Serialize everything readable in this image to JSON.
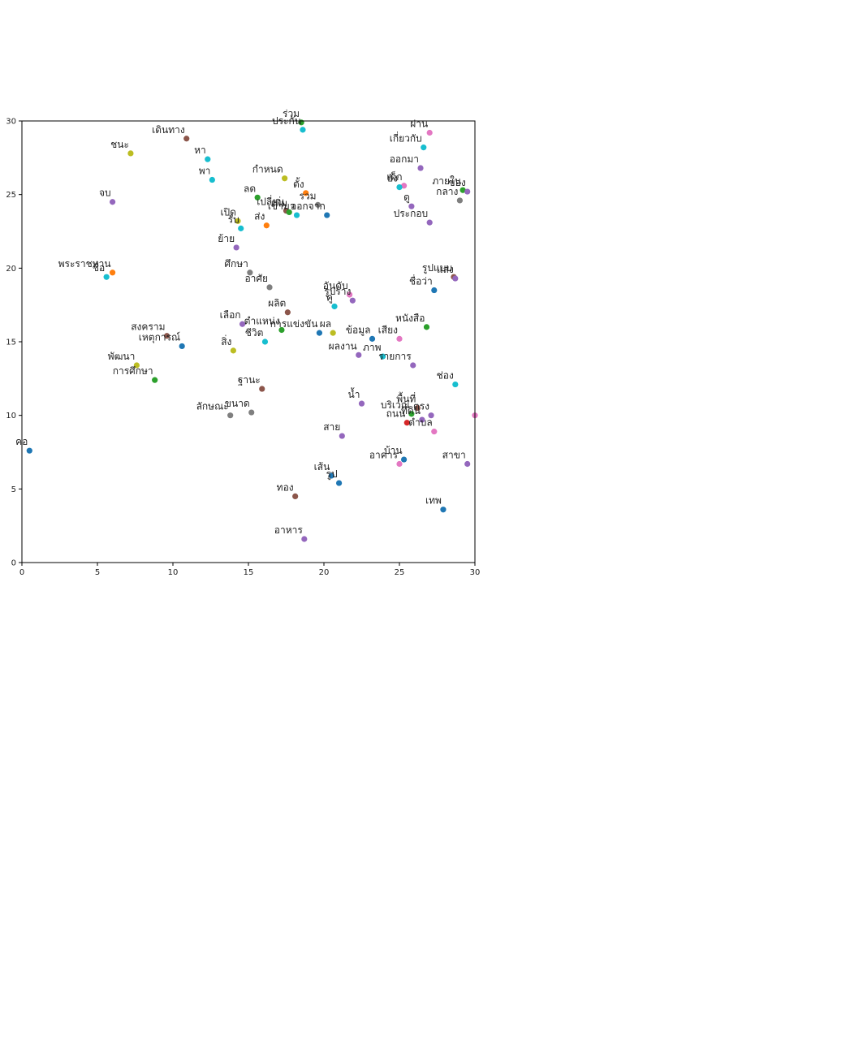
{
  "chart_data": {
    "type": "scatter",
    "title": "",
    "xlabel": "",
    "ylabel": "",
    "xlim": [
      0,
      30
    ],
    "ylim": [
      0,
      30
    ],
    "grid": false,
    "xticks": [
      0,
      5,
      10,
      15,
      20,
      25,
      30
    ],
    "yticks": [
      0,
      5,
      10,
      15,
      20,
      25,
      30
    ],
    "palette": [
      "#1f77b4",
      "#ff7f0e",
      "#2ca02c",
      "#d62728",
      "#9467bd",
      "#8c564b",
      "#e377c2",
      "#7f7f7f",
      "#bcbd22",
      "#17becf"
    ],
    "points": [
      {
        "label": "ร่วม",
        "x": 18.5,
        "y": 29.9,
        "color": "#2ca02c"
      },
      {
        "label": "ประกัน",
        "x": 18.6,
        "y": 29.4,
        "color": "#17becf"
      },
      {
        "label": "ผ่าน",
        "x": 27.0,
        "y": 29.2,
        "color": "#e377c2"
      },
      {
        "label": "เดินทาง",
        "x": 10.9,
        "y": 28.8,
        "color": "#8c564b"
      },
      {
        "label": "เกี่ยวกับ",
        "x": 26.6,
        "y": 28.2,
        "color": "#17becf"
      },
      {
        "label": "ชนะ",
        "x": 7.2,
        "y": 27.8,
        "color": "#bcbd22"
      },
      {
        "label": "หา",
        "x": 12.3,
        "y": 27.4,
        "color": "#17becf"
      },
      {
        "label": "ออกมา",
        "x": 26.4,
        "y": 26.8,
        "color": "#9467bd"
      },
      {
        "label": "กำหนด",
        "x": 17.4,
        "y": 26.1,
        "color": "#bcbd22"
      },
      {
        "label": "พา",
        "x": 12.6,
        "y": 26.0,
        "color": "#17becf"
      },
      {
        "label": "เด็ก",
        "x": 25.3,
        "y": 25.6,
        "color": "#e377c2"
      },
      {
        "label": "ยัง",
        "x": 25.0,
        "y": 25.5,
        "color": "#17becf"
      },
      {
        "label": "ภายใน",
        "x": 29.2,
        "y": 25.3,
        "color": "#2ca02c"
      },
      {
        "label": "ของ",
        "x": 29.5,
        "y": 25.2,
        "color": "#9467bd"
      },
      {
        "label": "ตั้ง",
        "x": 18.8,
        "y": 25.1,
        "color": "#ff7f0e"
      },
      {
        "label": "ลด",
        "x": 15.6,
        "y": 24.8,
        "color": "#2ca02c"
      },
      {
        "label": "กลาง",
        "x": 29.0,
        "y": 24.6,
        "color": "#7f7f7f"
      },
      {
        "label": "จบ",
        "x": 6.0,
        "y": 24.5,
        "color": "#9467bd"
      },
      {
        "label": "รวม",
        "x": 19.6,
        "y": 24.3,
        "color": "#7f7f7f"
      },
      {
        "label": "ดู",
        "x": 25.8,
        "y": 24.2,
        "color": "#9467bd"
      },
      {
        "label": "เปลี่ยน",
        "x": 17.5,
        "y": 23.9,
        "color": "#8c564b"
      },
      {
        "label": "เพิ่ม",
        "x": 17.7,
        "y": 23.8,
        "color": "#2ca02c"
      },
      {
        "label": "เข้ามา",
        "x": 18.2,
        "y": 23.6,
        "color": "#17becf"
      },
      {
        "label": "ออกจาก",
        "x": 20.2,
        "y": 23.6,
        "color": "#1f77b4"
      },
      {
        "label": "ประกอบ",
        "x": 27.0,
        "y": 23.1,
        "color": "#9467bd"
      },
      {
        "label": "เปิด",
        "x": 14.3,
        "y": 23.2,
        "color": "#bcbd22"
      },
      {
        "label": "ส่ง",
        "x": 16.2,
        "y": 22.9,
        "color": "#ff7f0e"
      },
      {
        "label": "รับ",
        "x": 14.5,
        "y": 22.7,
        "color": "#17becf"
      },
      {
        "label": "ย้าย",
        "x": 14.2,
        "y": 21.4,
        "color": "#9467bd"
      },
      {
        "label": "พระราชทาน",
        "x": 6.0,
        "y": 19.7,
        "color": "#ff7f0e"
      },
      {
        "label": "ชื่อ",
        "x": 5.6,
        "y": 19.4,
        "color": "#17becf"
      },
      {
        "label": "ศึกษา",
        "x": 15.1,
        "y": 19.7,
        "color": "#7f7f7f"
      },
      {
        "label": "รูปแบบ",
        "x": 28.6,
        "y": 19.4,
        "color": "#8c564b"
      },
      {
        "label": "แสง",
        "x": 28.7,
        "y": 19.3,
        "color": "#9467bd"
      },
      {
        "label": "อาศัย",
        "x": 16.4,
        "y": 18.7,
        "color": "#7f7f7f"
      },
      {
        "label": "ชื่อว่า",
        "x": 27.3,
        "y": 18.5,
        "color": "#1f77b4"
      },
      {
        "label": "อันดับ",
        "x": 21.7,
        "y": 18.2,
        "color": "#e377c2"
      },
      {
        "label": "รูปร่าง",
        "x": 21.9,
        "y": 17.8,
        "color": "#9467bd"
      },
      {
        "label": "ผลิต",
        "x": 17.6,
        "y": 17.0,
        "color": "#8c564b"
      },
      {
        "label": "คู่",
        "x": 20.7,
        "y": 17.4,
        "color": "#17becf"
      },
      {
        "label": "เลือก",
        "x": 14.6,
        "y": 16.2,
        "color": "#9467bd"
      },
      {
        "label": "หนังสือ",
        "x": 26.8,
        "y": 16.0,
        "color": "#2ca02c"
      },
      {
        "label": "ตำแหน่ง",
        "x": 17.2,
        "y": 15.8,
        "color": "#2ca02c"
      },
      {
        "label": "การแข่งขัน",
        "x": 19.7,
        "y": 15.6,
        "color": "#1f77b4"
      },
      {
        "label": "ผล",
        "x": 20.6,
        "y": 15.6,
        "color": "#bcbd22"
      },
      {
        "label": "ข้อมูล",
        "x": 23.2,
        "y": 15.2,
        "color": "#1f77b4"
      },
      {
        "label": "เสียง",
        "x": 25.0,
        "y": 15.2,
        "color": "#e377c2"
      },
      {
        "label": "สงคราม",
        "x": 9.6,
        "y": 15.4,
        "color": "#8c564b"
      },
      {
        "label": "เหตุการณ์",
        "x": 10.6,
        "y": 14.7,
        "color": "#1f77b4"
      },
      {
        "label": "ชีวิต",
        "x": 16.1,
        "y": 15.0,
        "color": "#17becf"
      },
      {
        "label": "สิ่ง",
        "x": 14.0,
        "y": 14.4,
        "color": "#bcbd22"
      },
      {
        "label": "ผลงาน",
        "x": 22.3,
        "y": 14.1,
        "color": "#9467bd"
      },
      {
        "label": "ภาพ",
        "x": 23.9,
        "y": 14.0,
        "color": "#17becf"
      },
      {
        "label": "รายการ",
        "x": 25.9,
        "y": 13.4,
        "color": "#9467bd"
      },
      {
        "label": "พัฒนา",
        "x": 7.6,
        "y": 13.4,
        "color": "#bcbd22"
      },
      {
        "label": "การศึกษา",
        "x": 8.8,
        "y": 12.4,
        "color": "#2ca02c"
      },
      {
        "label": "ช่อง",
        "x": 28.7,
        "y": 12.1,
        "color": "#17becf"
      },
      {
        "label": "ฐานะ",
        "x": 15.9,
        "y": 11.8,
        "color": "#8c564b"
      },
      {
        "label": "น้ำ",
        "x": 22.5,
        "y": 10.8,
        "color": "#9467bd"
      },
      {
        "label": "พื้นที่",
        "x": 26.2,
        "y": 10.5,
        "color": "#8c564b"
      },
      {
        "label": "บริเวณ",
        "x": 25.8,
        "y": 10.1,
        "color": "#2ca02c"
      },
      {
        "label": "ตรง",
        "x": 27.1,
        "y": 10.0,
        "color": "#9467bd"
      },
      {
        "label": "ขนาด",
        "x": 15.2,
        "y": 10.2,
        "color": "#7f7f7f"
      },
      {
        "label": "ลักษณะ",
        "x": 13.8,
        "y": 10.0,
        "color": "#7f7f7f"
      },
      {
        "label": "",
        "x": 30.0,
        "y": 10.0,
        "color": "#e377c2"
      },
      {
        "label": "ที่ดิน",
        "x": 26.5,
        "y": 9.7,
        "color": "#9467bd"
      },
      {
        "label": "ถนน",
        "x": 25.5,
        "y": 9.5,
        "color": "#d62728"
      },
      {
        "label": "ตำบล",
        "x": 27.3,
        "y": 8.9,
        "color": "#e377c2"
      },
      {
        "label": "สาย",
        "x": 21.2,
        "y": 8.6,
        "color": "#9467bd"
      },
      {
        "label": "คอ",
        "x": 0.5,
        "y": 7.6,
        "color": "#1f77b4"
      },
      {
        "label": "บ้าน",
        "x": 25.3,
        "y": 7.0,
        "color": "#1f77b4"
      },
      {
        "label": "อาคาร",
        "x": 25.0,
        "y": 6.7,
        "color": "#e377c2"
      },
      {
        "label": "สาขา",
        "x": 29.5,
        "y": 6.7,
        "color": "#9467bd"
      },
      {
        "label": "เส้น",
        "x": 20.5,
        "y": 5.9,
        "color": "#1f77b4"
      },
      {
        "label": "รูป",
        "x": 21.0,
        "y": 5.4,
        "color": "#1f77b4"
      },
      {
        "label": "ทอง",
        "x": 18.1,
        "y": 4.5,
        "color": "#8c564b"
      },
      {
        "label": "เทพ",
        "x": 27.9,
        "y": 3.6,
        "color": "#1f77b4"
      },
      {
        "label": "อาหาร",
        "x": 18.7,
        "y": 1.6,
        "color": "#9467bd"
      }
    ]
  }
}
